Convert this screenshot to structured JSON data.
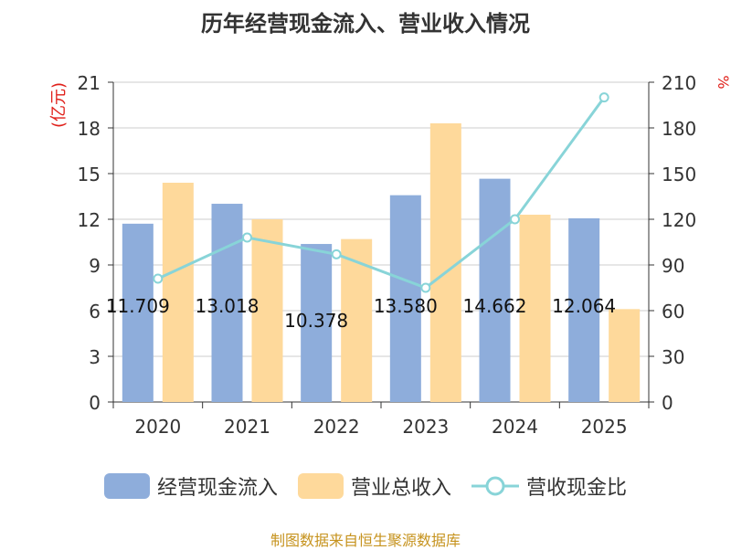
{
  "title": "历年经营现金流入、营业收入情况",
  "source": "制图数据来自恒生聚源数据库",
  "chart_data": {
    "type": "bar",
    "categories": [
      "2020",
      "2021",
      "2022",
      "2023",
      "2024",
      "2025"
    ],
    "y_left": {
      "label": "(亿元)",
      "min": 0,
      "max": 21,
      "ticks": [
        0,
        3,
        6,
        9,
        12,
        15,
        18,
        21
      ]
    },
    "y_right": {
      "label": "%",
      "min": 0,
      "max": 210,
      "ticks": [
        0,
        30,
        60,
        90,
        120,
        150,
        180,
        210
      ]
    },
    "grid": true,
    "legend_position": "bottom",
    "series": [
      {
        "name": "经营现金流入",
        "type": "bar",
        "axis": "left",
        "color": "#8eaddb",
        "values": [
          11.709,
          13.018,
          10.378,
          13.58,
          14.662,
          12.064
        ],
        "labels": [
          "11.709",
          "13.018",
          "10.378",
          "13.580",
          "14.662",
          "12.064"
        ]
      },
      {
        "name": "营业总收入",
        "type": "bar",
        "axis": "left",
        "color": "#fed99b",
        "values": [
          14.4,
          12.0,
          10.7,
          18.3,
          12.3,
          6.1
        ]
      },
      {
        "name": "营收现金比",
        "type": "line",
        "axis": "right",
        "color": "#88d4d8",
        "values": [
          81,
          108,
          97,
          75,
          120,
          200
        ]
      }
    ]
  }
}
